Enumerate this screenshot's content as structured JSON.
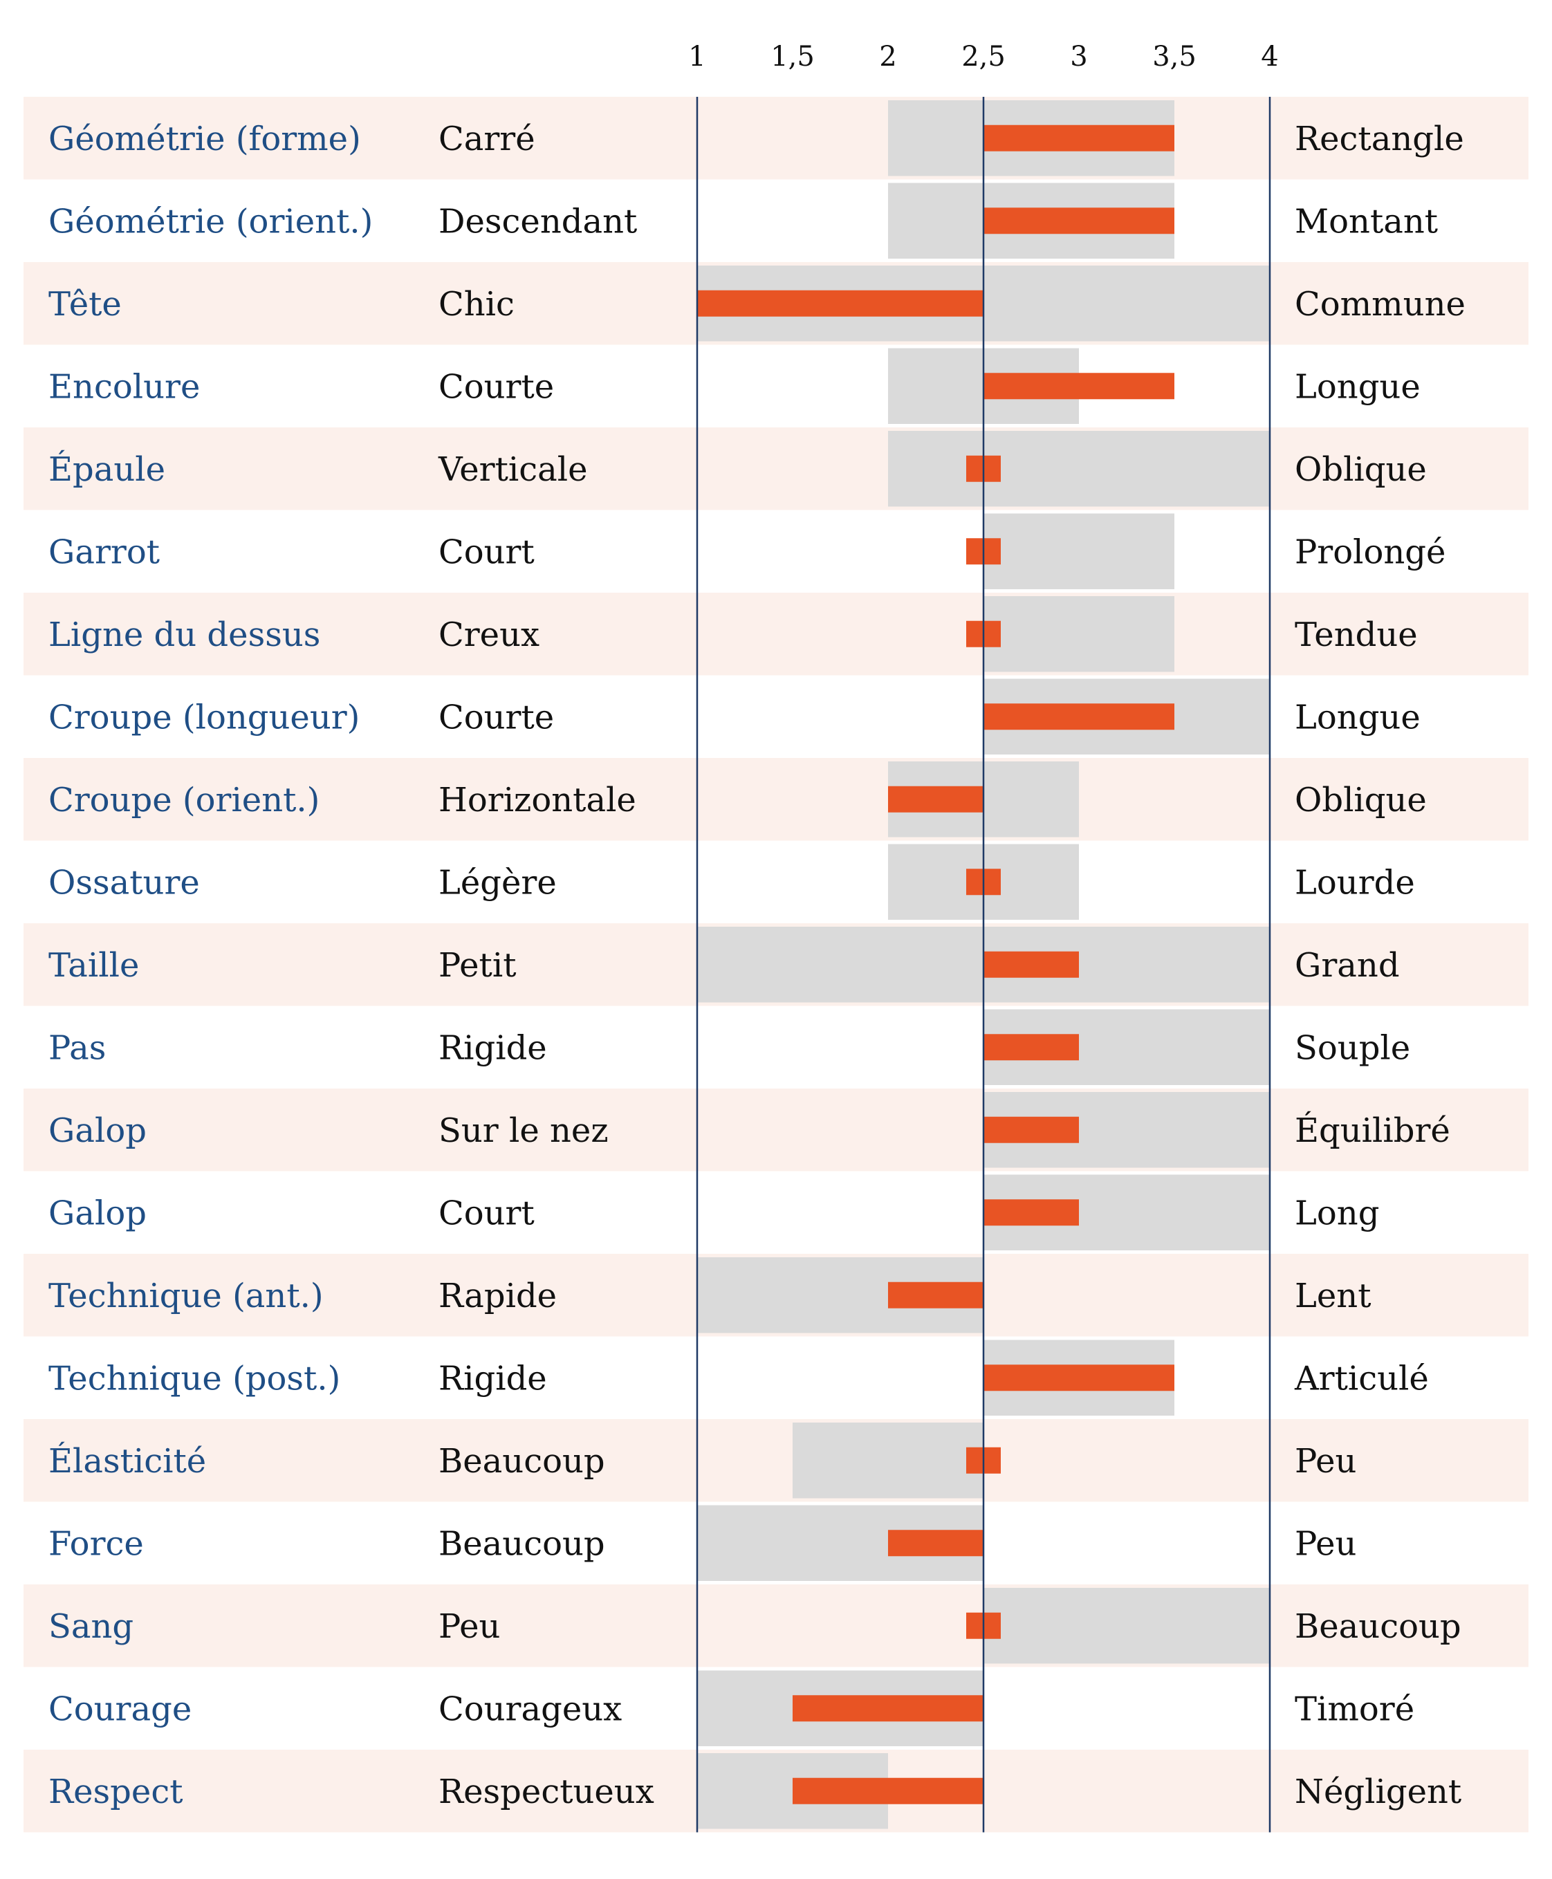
{
  "chart_data": {
    "type": "bar",
    "orientation": "horizontal",
    "axis": {
      "ticks": [
        1,
        1.5,
        2,
        2.5,
        3,
        3.5,
        4
      ],
      "tick_labels": [
        "1",
        "1,5",
        "2",
        "2,5",
        "3",
        "3,5",
        "4"
      ],
      "xlim": [
        1,
        4
      ],
      "reference": 2.5,
      "position": "top"
    },
    "colors": {
      "trait_text": "#1f4e85",
      "bar": "#e85424",
      "range": "#dadada",
      "row_stripe": "#fcf0eb",
      "axis_line": "#1f3a66"
    },
    "rows": [
      {
        "trait": "Géométrie (forme)",
        "low": "Carré",
        "high": "Rectangle",
        "range": [
          2,
          3.5
        ],
        "value": 3.5
      },
      {
        "trait": "Géométrie (orient.)",
        "low": "Descendant",
        "high": "Montant",
        "range": [
          2,
          3.5
        ],
        "value": 3.5
      },
      {
        "trait": "Tête",
        "low": "Chic",
        "high": "Commune",
        "range": [
          1,
          4
        ],
        "value": 1
      },
      {
        "trait": "Encolure",
        "low": "Courte",
        "high": "Longue",
        "range": [
          2,
          3
        ],
        "value": 3.5
      },
      {
        "trait": "Épaule",
        "low": "Verticale",
        "high": "Oblique",
        "range": [
          2,
          4
        ],
        "value": 2.5
      },
      {
        "trait": "Garrot",
        "low": "Court",
        "high": "Prolongé",
        "range": [
          2.5,
          3.5
        ],
        "value": 2.5
      },
      {
        "trait": "Ligne du dessus",
        "low": "Creux",
        "high": "Tendue",
        "range": [
          2.5,
          3.5
        ],
        "value": 2.5
      },
      {
        "trait": "Croupe (longueur)",
        "low": "Courte",
        "high": "Longue",
        "range": [
          2.5,
          4
        ],
        "value": 3.5
      },
      {
        "trait": "Croupe (orient.)",
        "low": "Horizontale",
        "high": "Oblique",
        "range": [
          2,
          3
        ],
        "value": 2
      },
      {
        "trait": "Ossature",
        "low": "Légère",
        "high": "Lourde",
        "range": [
          2,
          3
        ],
        "value": 2.5
      },
      {
        "trait": "Taille",
        "low": "Petit",
        "high": "Grand",
        "range": [
          1,
          4
        ],
        "value": 3
      },
      {
        "trait": "Pas",
        "low": "Rigide",
        "high": "Souple",
        "range": [
          2.5,
          4
        ],
        "value": 3
      },
      {
        "trait": "Galop",
        "low": "Sur le nez",
        "high": "Équilibré",
        "range": [
          2.5,
          4
        ],
        "value": 3
      },
      {
        "trait": "Galop",
        "low": "Court",
        "high": "Long",
        "range": [
          2.5,
          4
        ],
        "value": 3
      },
      {
        "trait": "Technique (ant.)",
        "low": "Rapide",
        "high": "Lent",
        "range": [
          1,
          2.5
        ],
        "value": 2
      },
      {
        "trait": "Technique (post.)",
        "low": "Rigide",
        "high": "Articulé",
        "range": [
          2.5,
          3.5
        ],
        "value": 3.5
      },
      {
        "trait": "Élasticité",
        "low": "Beaucoup",
        "high": "Peu",
        "range": [
          1.5,
          2.5
        ],
        "value": 2.5
      },
      {
        "trait": "Force",
        "low": "Beaucoup",
        "high": "Peu",
        "range": [
          1,
          2.5
        ],
        "value": 2
      },
      {
        "trait": "Sang",
        "low": "Peu",
        "high": "Beaucoup",
        "range": [
          2.5,
          4
        ],
        "value": 2.5
      },
      {
        "trait": "Courage",
        "low": "Courageux",
        "high": "Timoré",
        "range": [
          1,
          2.5
        ],
        "value": 1.5
      },
      {
        "trait": "Respect",
        "low": "Respectueux",
        "high": "Négligent",
        "range": [
          1,
          2
        ],
        "value": 1.5
      }
    ]
  }
}
